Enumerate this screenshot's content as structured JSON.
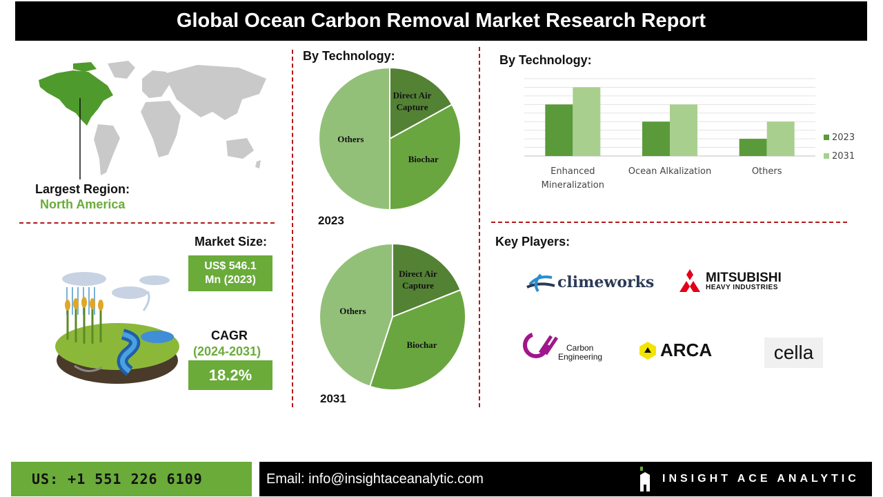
{
  "header": {
    "title": "Global Ocean Carbon Removal Market Research Report"
  },
  "region": {
    "label": "Largest Region:",
    "value": "North America"
  },
  "market": {
    "size_label": "Market Size:",
    "size_value_line1": "US$ 546.1",
    "size_value_line2": "Mn (2023)",
    "cagr_label": "CAGR",
    "cagr_period": "(2024-2031)",
    "cagr_value": "18.2%"
  },
  "pies": {
    "heading": "By Technology:",
    "year_2023": "2023",
    "year_2031": "2031"
  },
  "bars": {
    "heading": "By Technology:"
  },
  "chart_data": [
    {
      "type": "pie",
      "year": "2023",
      "slices": [
        {
          "label": "Direct Air Capture",
          "label_lines": [
            "Direct Air",
            "Capture"
          ],
          "value": 17,
          "color": "#548235"
        },
        {
          "label": "Biochar",
          "value": 33,
          "color": "#6aa640"
        },
        {
          "label": "Others",
          "value": 50,
          "color": "#93c079"
        }
      ]
    },
    {
      "type": "pie",
      "year": "2031",
      "slices": [
        {
          "label": "Direct Air Capture",
          "label_lines": [
            "Direct Air",
            "Capture"
          ],
          "value": 19,
          "color": "#548235"
        },
        {
          "label": "Biochar",
          "value": 36,
          "color": "#6aa640"
        },
        {
          "label": "Others",
          "value": 45,
          "color": "#93c079"
        }
      ]
    },
    {
      "type": "bar",
      "categories": [
        "Enhanced Mineralization",
        "Ocean Alkalization",
        "Others"
      ],
      "category_lines": [
        [
          "Enhanced",
          "Mineralization"
        ],
        [
          "Ocean Alkalization"
        ],
        [
          "Others"
        ]
      ],
      "series": [
        {
          "name": "2023",
          "values": [
            3,
            2,
            1
          ],
          "color": "#5a9a3a"
        },
        {
          "name": "2031",
          "values": [
            4,
            3,
            2
          ],
          "color": "#a9cf8f"
        }
      ],
      "ylim": [
        0,
        4.5
      ],
      "grid": true,
      "legend": "right"
    }
  ],
  "players": {
    "heading": "Key Players:",
    "climeworks": "climeworks",
    "mitsubishi_line1": "MITSUBISHI",
    "mitsubishi_line2": "HEAVY INDUSTRIES",
    "carbon_line1": "Carbon",
    "carbon_line2": "Engineering",
    "arca": "ARCA",
    "cella": "cella"
  },
  "footer": {
    "phone": "US: +1 551 226 6109",
    "email": "Email: info@insightaceanalytic.com",
    "brand": "INSIGHT ACE ANALYTIC"
  }
}
